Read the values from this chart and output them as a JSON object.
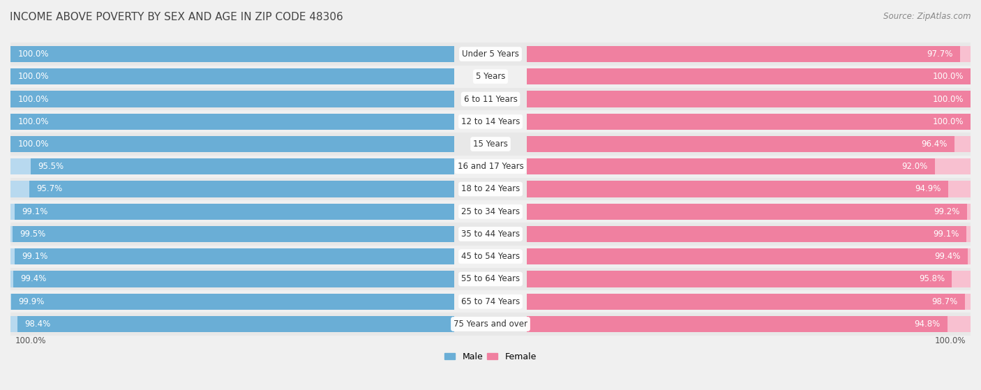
{
  "title": "INCOME ABOVE POVERTY BY SEX AND AGE IN ZIP CODE 48306",
  "source": "Source: ZipAtlas.com",
  "categories": [
    "Under 5 Years",
    "5 Years",
    "6 to 11 Years",
    "12 to 14 Years",
    "15 Years",
    "16 and 17 Years",
    "18 to 24 Years",
    "25 to 34 Years",
    "35 to 44 Years",
    "45 to 54 Years",
    "55 to 64 Years",
    "65 to 74 Years",
    "75 Years and over"
  ],
  "male_values": [
    100.0,
    100.0,
    100.0,
    100.0,
    100.0,
    95.5,
    95.7,
    99.1,
    99.5,
    99.1,
    99.4,
    99.9,
    98.4
  ],
  "female_values": [
    97.7,
    100.0,
    100.0,
    100.0,
    96.4,
    92.0,
    94.9,
    99.2,
    99.1,
    99.4,
    95.8,
    98.7,
    94.8
  ],
  "male_color": "#6aaed6",
  "male_light_color": "#b8d9ef",
  "female_color": "#f080a0",
  "female_light_color": "#f8c0d0",
  "row_bg_color": "#e8e8e8",
  "row_alt_bg_color": "#f0f0f0",
  "label_bg_color": "#ffffff",
  "male_label": "Male",
  "female_label": "Female",
  "bar_height": 0.72,
  "background_color": "#f0f0f0",
  "title_fontsize": 11,
  "label_fontsize": 8.5,
  "value_fontsize": 8.5,
  "source_fontsize": 8.5,
  "legend_fontsize": 9
}
